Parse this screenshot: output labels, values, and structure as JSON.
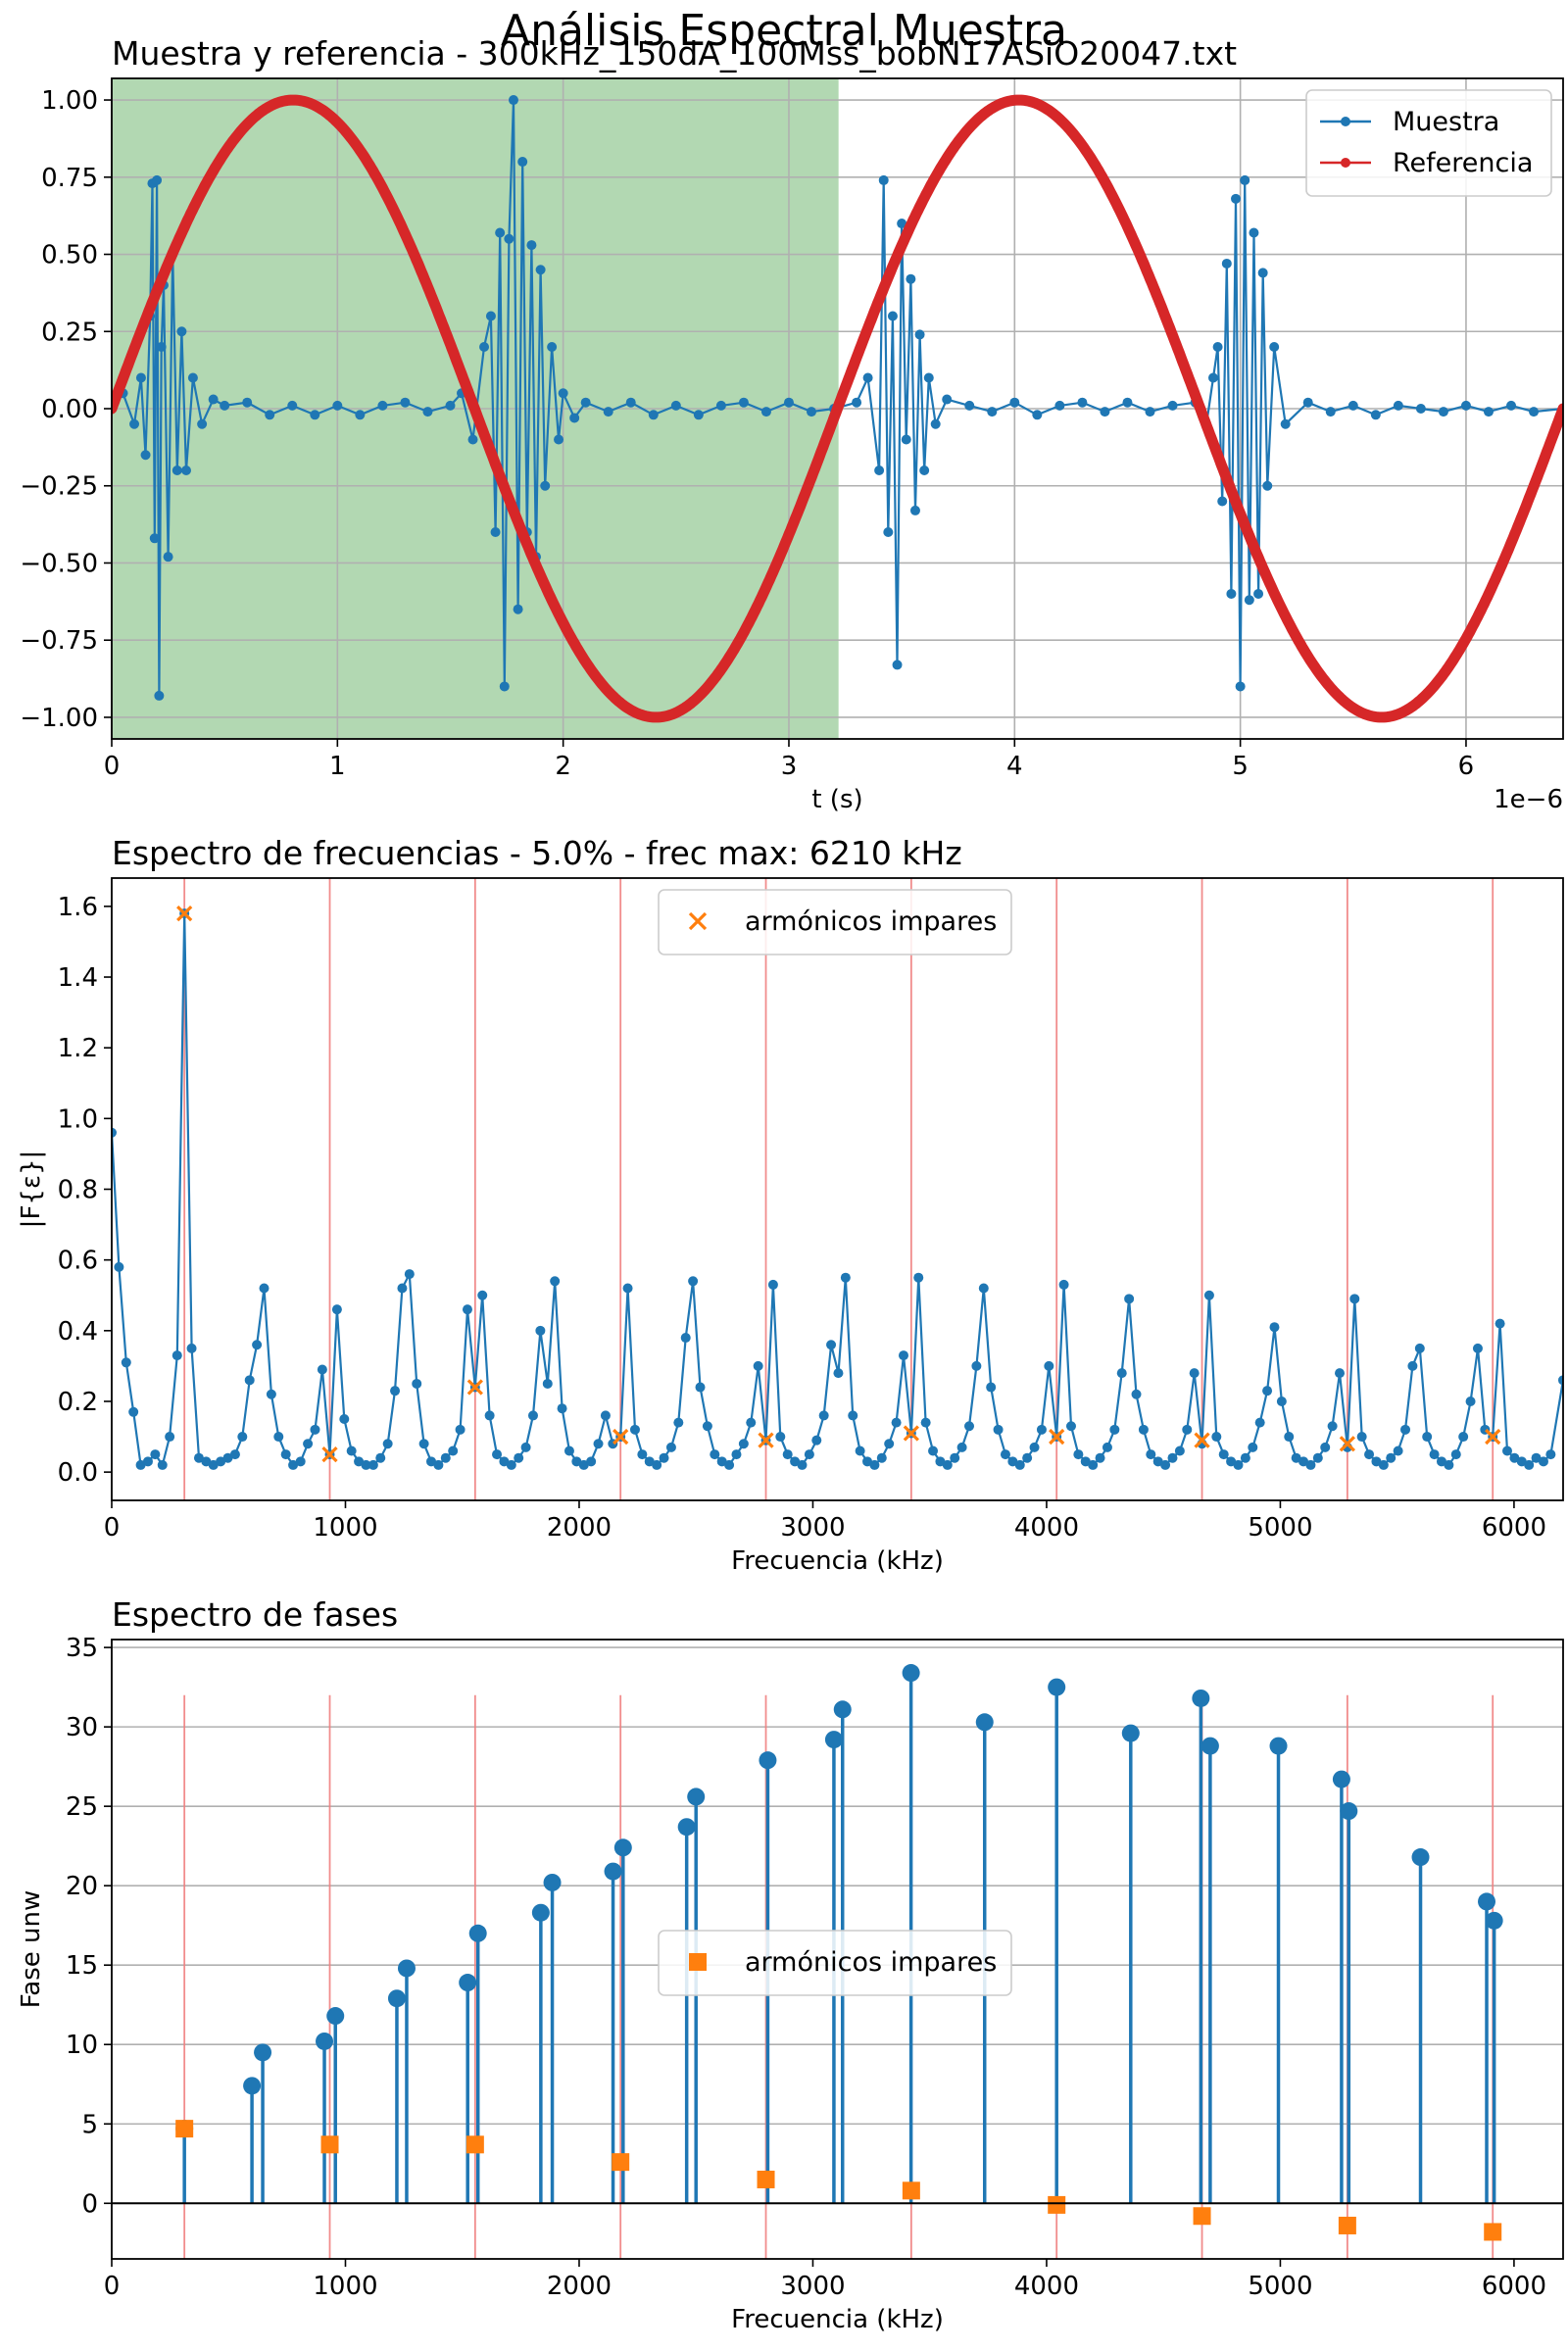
{
  "figure": {
    "suptitle": "Análisis Espectral Muestra"
  },
  "chart_data": [
    {
      "type": "line",
      "title": "Muestra y referencia - 300kHz_150dA_100Mss_bobN17ASiO20047.txt",
      "xlabel": "t (s)",
      "ylabel": "",
      "x_offset_label": "1e−6",
      "xlim": [
        0,
        6.43
      ],
      "ylim": [
        -1.07,
        1.07
      ],
      "xticks": [
        0,
        1,
        2,
        3,
        4,
        5,
        6
      ],
      "yticks": [
        1.0,
        0.75,
        0.5,
        0.25,
        0.0,
        -0.25,
        -0.5,
        -0.75,
        -1.0
      ],
      "ytick_labels": [
        "1.00",
        "0.75",
        "0.50",
        "0.25",
        "0.00",
        "−0.25",
        "−0.50",
        "−0.75",
        "−1.00"
      ],
      "grid": true,
      "legend_position": "top-right",
      "shaded_region": {
        "x": [
          0,
          3.22
        ],
        "color": "#b2d8b2"
      },
      "series": [
        {
          "name": "Muestra",
          "color": "#1f77b4",
          "x": [
            0.0,
            0.05,
            0.1,
            0.13,
            0.15,
            0.17,
            0.18,
            0.19,
            0.2,
            0.21,
            0.22,
            0.23,
            0.25,
            0.27,
            0.29,
            0.31,
            0.33,
            0.36,
            0.4,
            0.45,
            0.5,
            0.6,
            0.7,
            0.8,
            0.9,
            1.0,
            1.1,
            1.2,
            1.3,
            1.4,
            1.5,
            1.55,
            1.6,
            1.65,
            1.68,
            1.7,
            1.72,
            1.74,
            1.76,
            1.78,
            1.8,
            1.82,
            1.84,
            1.86,
            1.88,
            1.9,
            1.92,
            1.95,
            1.98,
            2.0,
            2.05,
            2.1,
            2.2,
            2.3,
            2.4,
            2.5,
            2.6,
            2.7,
            2.8,
            2.9,
            3.0,
            3.1,
            3.2,
            3.3,
            3.35,
            3.4,
            3.42,
            3.44,
            3.46,
            3.48,
            3.5,
            3.52,
            3.54,
            3.56,
            3.58,
            3.6,
            3.62,
            3.65,
            3.7,
            3.8,
            3.9,
            4.0,
            4.1,
            4.2,
            4.3,
            4.4,
            4.5,
            4.6,
            4.7,
            4.8,
            4.85,
            4.88,
            4.9,
            4.92,
            4.94,
            4.96,
            4.98,
            5.0,
            5.02,
            5.04,
            5.06,
            5.08,
            5.1,
            5.12,
            5.15,
            5.2,
            5.3,
            5.4,
            5.5,
            5.6,
            5.7,
            5.8,
            5.9,
            6.0,
            6.1,
            6.2,
            6.3,
            6.43
          ],
          "y": [
            0.0,
            0.05,
            -0.05,
            0.1,
            -0.15,
            0.3,
            0.73,
            -0.42,
            0.74,
            -0.93,
            0.2,
            0.4,
            -0.48,
            0.5,
            -0.2,
            0.25,
            -0.2,
            0.1,
            -0.05,
            0.03,
            0.01,
            0.02,
            -0.02,
            0.01,
            -0.02,
            0.01,
            -0.02,
            0.01,
            0.02,
            -0.01,
            0.01,
            0.05,
            -0.1,
            0.2,
            0.3,
            -0.4,
            0.57,
            -0.9,
            0.55,
            1.0,
            -0.65,
            0.8,
            -0.4,
            0.53,
            -0.48,
            0.45,
            -0.25,
            0.2,
            -0.1,
            0.05,
            -0.03,
            0.02,
            -0.01,
            0.02,
            -0.02,
            0.01,
            -0.02,
            0.01,
            0.02,
            -0.01,
            0.02,
            -0.01,
            0.0,
            0.02,
            0.1,
            -0.2,
            0.74,
            -0.4,
            0.3,
            -0.83,
            0.6,
            -0.1,
            0.42,
            -0.33,
            0.24,
            -0.2,
            0.1,
            -0.05,
            0.03,
            0.01,
            -0.01,
            0.02,
            -0.02,
            0.01,
            0.02,
            -0.01,
            0.02,
            -0.01,
            0.01,
            0.02,
            -0.05,
            0.1,
            0.2,
            -0.3,
            0.47,
            -0.6,
            0.68,
            -0.9,
            0.74,
            -0.62,
            0.57,
            -0.6,
            0.44,
            -0.25,
            0.2,
            -0.05,
            0.02,
            -0.01,
            0.01,
            -0.02,
            0.01,
            0.0,
            -0.01,
            0.01,
            -0.01,
            0.01,
            -0.01,
            0.0
          ]
        },
        {
          "name": "Referencia",
          "color": "#d62728",
          "function": "sin",
          "period": 3.215,
          "amplitude": 1.0,
          "x_range": [
            0,
            6.43
          ]
        }
      ]
    },
    {
      "type": "line",
      "title": "Espectro de frecuencias - 5.0% - frec max: 6210 kHz",
      "xlabel": "Frecuencia (kHz)",
      "ylabel": "|F{ε}|",
      "xlim": [
        0,
        6210
      ],
      "ylim": [
        -0.08,
        1.68
      ],
      "xticks": [
        0,
        1000,
        2000,
        3000,
        4000,
        5000,
        6000
      ],
      "yticks": [
        0.0,
        0.2,
        0.4,
        0.6,
        0.8,
        1.0,
        1.2,
        1.4,
        1.6
      ],
      "ytick_labels": [
        "0.0",
        "0.2",
        "0.4",
        "0.6",
        "0.8",
        "1.0",
        "1.2",
        "1.4",
        "1.6"
      ],
      "grid": false,
      "legend_position": "top-center",
      "vertical_lines": [
        311,
        933,
        1555,
        2177,
        2799,
        3421,
        4043,
        4665,
        5287,
        5909
      ],
      "series": [
        {
          "name": "",
          "color": "#1f77b4",
          "x": [
            0,
            31,
            62,
            93,
            124,
            155,
            186,
            217,
            248,
            280,
            311,
            342,
            373,
            404,
            435,
            466,
            497,
            528,
            559,
            590,
            621,
            652,
            683,
            714,
            745,
            776,
            808,
            839,
            870,
            901,
            933,
            964,
            995,
            1026,
            1057,
            1088,
            1119,
            1150,
            1181,
            1212,
            1243,
            1274,
            1305,
            1336,
            1367,
            1398,
            1429,
            1460,
            1491,
            1522,
            1555,
            1586,
            1617,
            1648,
            1679,
            1710,
            1741,
            1772,
            1803,
            1834,
            1865,
            1896,
            1927,
            1958,
            1989,
            2020,
            2051,
            2082,
            2113,
            2144,
            2177,
            2208,
            2239,
            2270,
            2301,
            2332,
            2363,
            2394,
            2425,
            2456,
            2487,
            2518,
            2549,
            2580,
            2611,
            2642,
            2673,
            2704,
            2735,
            2766,
            2799,
            2830,
            2861,
            2892,
            2923,
            2954,
            2985,
            3016,
            3047,
            3078,
            3109,
            3140,
            3171,
            3202,
            3233,
            3264,
            3295,
            3326,
            3357,
            3388,
            3421,
            3452,
            3483,
            3514,
            3545,
            3576,
            3607,
            3638,
            3669,
            3700,
            3731,
            3762,
            3793,
            3824,
            3855,
            3886,
            3917,
            3948,
            3979,
            4010,
            4043,
            4074,
            4105,
            4136,
            4167,
            4198,
            4229,
            4260,
            4291,
            4322,
            4353,
            4384,
            4415,
            4446,
            4477,
            4508,
            4539,
            4570,
            4601,
            4632,
            4665,
            4696,
            4727,
            4758,
            4789,
            4820,
            4851,
            4882,
            4913,
            4944,
            4975,
            5006,
            5037,
            5068,
            5099,
            5130,
            5161,
            5192,
            5223,
            5254,
            5287,
            5318,
            5349,
            5380,
            5411,
            5442,
            5473,
            5504,
            5535,
            5566,
            5597,
            5628,
            5659,
            5690,
            5721,
            5752,
            5783,
            5814,
            5845,
            5876,
            5909,
            5940,
            5971,
            6002,
            6033,
            6064,
            6095,
            6126,
            6157,
            6210
          ],
          "y": [
            0.96,
            0.58,
            0.31,
            0.17,
            0.02,
            0.03,
            0.05,
            0.02,
            0.1,
            0.33,
            1.58,
            0.35,
            0.04,
            0.03,
            0.02,
            0.03,
            0.04,
            0.05,
            0.1,
            0.26,
            0.36,
            0.52,
            0.22,
            0.1,
            0.05,
            0.02,
            0.03,
            0.08,
            0.12,
            0.29,
            0.05,
            0.46,
            0.15,
            0.06,
            0.03,
            0.02,
            0.02,
            0.04,
            0.08,
            0.23,
            0.52,
            0.56,
            0.25,
            0.08,
            0.03,
            0.02,
            0.04,
            0.06,
            0.12,
            0.46,
            0.24,
            0.5,
            0.16,
            0.05,
            0.03,
            0.02,
            0.04,
            0.07,
            0.16,
            0.4,
            0.25,
            0.54,
            0.18,
            0.06,
            0.03,
            0.02,
            0.03,
            0.08,
            0.16,
            0.08,
            0.1,
            0.52,
            0.12,
            0.05,
            0.03,
            0.02,
            0.04,
            0.07,
            0.14,
            0.38,
            0.54,
            0.24,
            0.13,
            0.05,
            0.03,
            0.02,
            0.05,
            0.08,
            0.14,
            0.3,
            0.09,
            0.53,
            0.1,
            0.05,
            0.03,
            0.02,
            0.05,
            0.09,
            0.16,
            0.36,
            0.28,
            0.55,
            0.16,
            0.06,
            0.03,
            0.02,
            0.04,
            0.08,
            0.14,
            0.33,
            0.11,
            0.55,
            0.14,
            0.06,
            0.03,
            0.02,
            0.04,
            0.07,
            0.13,
            0.3,
            0.52,
            0.24,
            0.12,
            0.05,
            0.03,
            0.02,
            0.04,
            0.07,
            0.12,
            0.3,
            0.1,
            0.53,
            0.13,
            0.05,
            0.03,
            0.02,
            0.04,
            0.07,
            0.12,
            0.28,
            0.49,
            0.22,
            0.12,
            0.05,
            0.03,
            0.02,
            0.04,
            0.06,
            0.12,
            0.28,
            0.08,
            0.5,
            0.1,
            0.05,
            0.03,
            0.02,
            0.04,
            0.07,
            0.14,
            0.23,
            0.41,
            0.2,
            0.1,
            0.04,
            0.03,
            0.02,
            0.04,
            0.07,
            0.13,
            0.28,
            0.07,
            0.49,
            0.1,
            0.05,
            0.03,
            0.02,
            0.04,
            0.06,
            0.12,
            0.3,
            0.35,
            0.1,
            0.05,
            0.03,
            0.02,
            0.05,
            0.1,
            0.2,
            0.35,
            0.12,
            0.1,
            0.42,
            0.06,
            0.04,
            0.03,
            0.02,
            0.04,
            0.03,
            0.05,
            0.26
          ]
        },
        {
          "name": "armónicos impares",
          "color": "#ff7f0e",
          "marker": "x",
          "x": [
            311,
            933,
            1555,
            2177,
            2799,
            3421,
            4043,
            4665,
            5287,
            5909
          ],
          "y": [
            1.58,
            0.05,
            0.24,
            0.1,
            0.09,
            0.11,
            0.1,
            0.09,
            0.08,
            0.1
          ]
        }
      ]
    },
    {
      "type": "scatter",
      "title": "Espectro de fases",
      "xlabel": "Frecuencia (kHz)",
      "ylabel": "Fase unw",
      "xlim": [
        0,
        6210
      ],
      "ylim": [
        -3.5,
        35.5
      ],
      "xticks": [
        0,
        1000,
        2000,
        3000,
        4000,
        5000,
        6000
      ],
      "yticks": [
        0,
        5,
        10,
        15,
        20,
        25,
        30,
        35
      ],
      "ytick_labels": [
        "0",
        "5",
        "10",
        "15",
        "20",
        "25",
        "30",
        "35"
      ],
      "grid": true,
      "grid_axis": "y",
      "legend_position": "center",
      "vertical_lines": [
        311,
        933,
        1555,
        2177,
        2799,
        3421,
        4043,
        4665,
        5287,
        5909
      ],
      "vertical_line_top": 32,
      "series": [
        {
          "name": "",
          "color": "#1f77b4",
          "marker": "stem",
          "x": [
            311,
            600,
            646,
            910,
            957,
            1220,
            1262,
            1523,
            1567,
            1836,
            1885,
            2145,
            2188,
            2460,
            2500,
            2807,
            3090,
            3127,
            3420,
            3735,
            4043,
            4360,
            4660,
            4700,
            4992,
            5262,
            5293,
            5600,
            5883,
            5915
          ],
          "y": [
            4.7,
            7.4,
            9.5,
            10.2,
            11.8,
            12.9,
            14.8,
            13.9,
            17.0,
            18.3,
            20.2,
            20.9,
            22.4,
            23.7,
            25.6,
            27.9,
            29.2,
            31.1,
            33.4,
            30.3,
            32.5,
            29.6,
            31.8,
            28.8,
            28.8,
            26.7,
            24.7,
            21.8,
            19.0,
            17.8
          ]
        },
        {
          "name": "armónicos impares",
          "color": "#ff7f0e",
          "marker": "square",
          "x": [
            311,
            933,
            1555,
            2177,
            2799,
            3421,
            4043,
            4665,
            5287,
            5909
          ],
          "y": [
            4.7,
            3.7,
            3.7,
            2.6,
            1.5,
            0.8,
            -0.1,
            -0.8,
            -1.4,
            -1.8
          ]
        }
      ]
    }
  ]
}
